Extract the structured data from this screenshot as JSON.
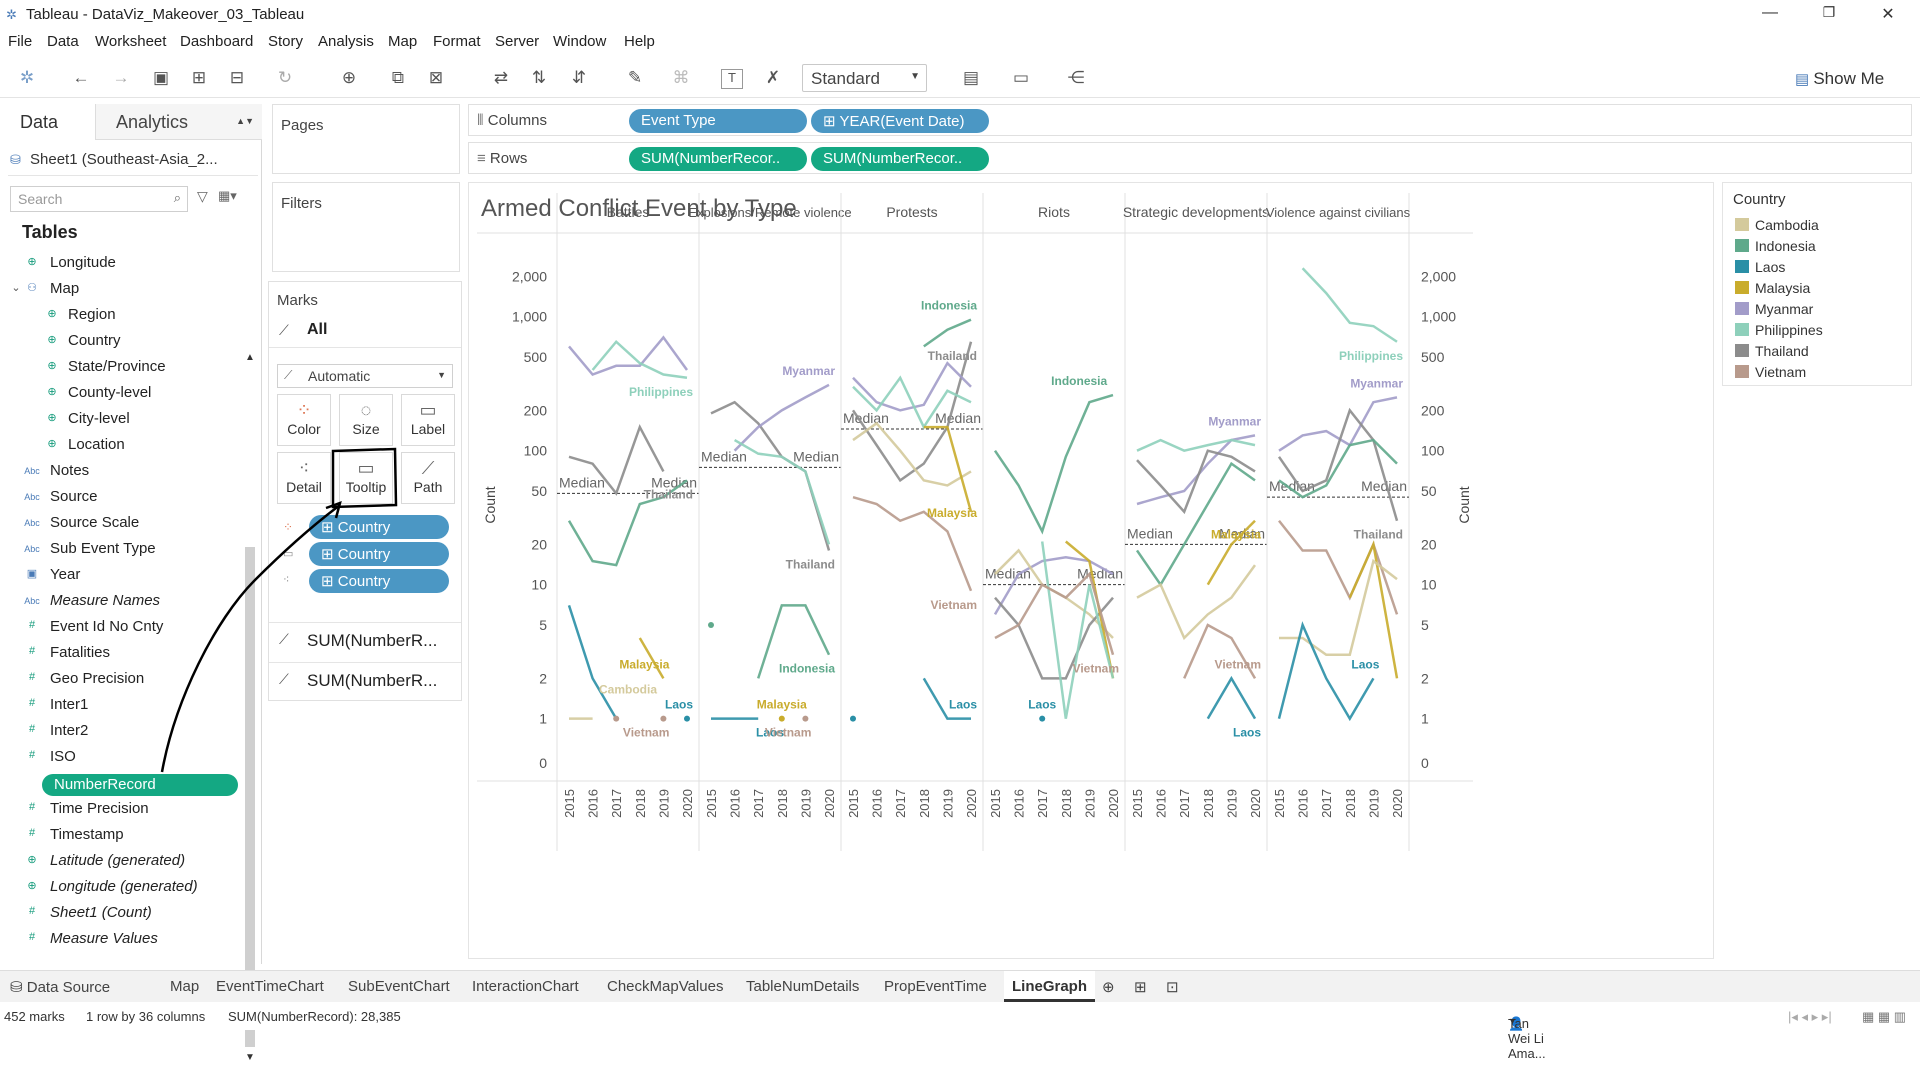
{
  "window": {
    "title": "Tableau - DataViz_Makeover_03_Tableau"
  },
  "menu": [
    "File",
    "Data",
    "Worksheet",
    "Dashboard",
    "Story",
    "Analysis",
    "Map",
    "Format",
    "Server",
    "Window",
    "Help"
  ],
  "toolbar": {
    "fit_value": "Standard",
    "show_me": "Show Me"
  },
  "data_pane": {
    "tabs": [
      "Data",
      "Analytics"
    ],
    "datasource": "Sheet1 (Southeast-Asia_2...",
    "search_placeholder": "Search",
    "tables_label": "Tables",
    "fields": [
      {
        "label": "Longitude",
        "type": "geo"
      },
      {
        "label": "Map",
        "type": "hier"
      },
      {
        "label": "Region",
        "type": "geo",
        "indent": true
      },
      {
        "label": "Country",
        "type": "geo",
        "indent": true
      },
      {
        "label": "State/Province",
        "type": "geo",
        "indent": true
      },
      {
        "label": "County-level",
        "type": "geo",
        "indent": true
      },
      {
        "label": "City-level",
        "type": "geo",
        "indent": true
      },
      {
        "label": "Location",
        "type": "geo",
        "indent": true
      },
      {
        "label": "Notes",
        "type": "abc"
      },
      {
        "label": "Source",
        "type": "abc"
      },
      {
        "label": "Source Scale",
        "type": "abc"
      },
      {
        "label": "Sub Event Type",
        "type": "abc"
      },
      {
        "label": "Year",
        "type": "date"
      },
      {
        "label": "Measure Names",
        "type": "abc",
        "italic": true
      },
      {
        "label": "Event Id No Cnty",
        "type": "num"
      },
      {
        "label": "Fatalities",
        "type": "num"
      },
      {
        "label": "Geo Precision",
        "type": "num"
      },
      {
        "label": "Inter1",
        "type": "num"
      },
      {
        "label": "Inter2",
        "type": "num"
      },
      {
        "label": "ISO",
        "type": "num"
      },
      {
        "label": "NumberRecord",
        "type": "num",
        "selected": true
      },
      {
        "label": "Time Precision",
        "type": "num"
      },
      {
        "label": "Timestamp",
        "type": "num"
      },
      {
        "label": "Latitude (generated)",
        "type": "geo",
        "italic": true
      },
      {
        "label": "Longitude (generated)",
        "type": "geo",
        "italic": true
      },
      {
        "label": "Sheet1 (Count)",
        "type": "num",
        "italic": true
      },
      {
        "label": "Measure Values",
        "type": "num",
        "italic": true
      }
    ]
  },
  "cards": {
    "pages": "Pages",
    "filters": "Filters",
    "marks": "Marks",
    "all": "All",
    "mark_type": "Automatic",
    "buttons": [
      "Color",
      "Size",
      "Label",
      "Detail",
      "Tooltip",
      "Path"
    ],
    "mark_pills": [
      "Country",
      "Country",
      "Country"
    ],
    "measures": [
      "SUM(NumberR...",
      "SUM(NumberR..."
    ]
  },
  "shelves": {
    "columns_label": "Columns",
    "rows_label": "Rows",
    "columns": [
      "Event Type",
      "YEAR(Event Date)"
    ],
    "rows": [
      "SUM(NumberRecor..",
      "SUM(NumberRecor.."
    ]
  },
  "legend": {
    "title": "Country",
    "items": [
      {
        "name": "Cambodia",
        "color": "#d4ca9c"
      },
      {
        "name": "Indonesia",
        "color": "#5fa98b"
      },
      {
        "name": "Laos",
        "color": "#2a8fa6"
      },
      {
        "name": "Malaysia",
        "color": "#c9ac2c"
      },
      {
        "name": "Myanmar",
        "color": "#a29cc9"
      },
      {
        "name": "Philippines",
        "color": "#8ed0bb"
      },
      {
        "name": "Thailand",
        "color": "#8c8c8c"
      },
      {
        "name": "Vietnam",
        "color": "#b89a8c"
      }
    ]
  },
  "chart_data": {
    "type": "line",
    "title": "Armed Conflict Event by Type",
    "ylabel": "Count",
    "yscale": "log",
    "yticks": [
      "0",
      "1",
      "2",
      "5",
      "10",
      "20",
      "50",
      "100",
      "200",
      "500",
      "1,000",
      "2,000"
    ],
    "x": [
      "2015",
      "2016",
      "2017",
      "2018",
      "2019",
      "2020"
    ],
    "panels": [
      {
        "name": "Battles",
        "median": 48,
        "series": [
          {
            "country": "Myanmar",
            "values": [
              600,
              370,
              430,
              430,
              700,
              400
            ]
          },
          {
            "country": "Philippines",
            "values": [
              null,
              400,
              650,
              450,
              370,
              350
            ]
          },
          {
            "country": "Thailand",
            "values": [
              90,
              80,
              48,
              150,
              70,
              null
            ]
          },
          {
            "country": "Indonesia",
            "values": [
              30,
              15,
              14,
              40,
              45,
              60
            ]
          },
          {
            "country": "Laos",
            "values": [
              7,
              2,
              1,
              null,
              null,
              1
            ]
          },
          {
            "country": "Malaysia",
            "values": [
              null,
              null,
              null,
              4,
              2,
              null
            ]
          },
          {
            "country": "Cambodia",
            "values": [
              1,
              1,
              null,
              null,
              null,
              null
            ]
          },
          {
            "country": "Vietnam",
            "values": [
              null,
              null,
              1,
              null,
              1,
              null
            ]
          }
        ]
      },
      {
        "name": "Explosions/Remote violence",
        "median": 75,
        "series": [
          {
            "country": "Thailand",
            "values": [
              190,
              230,
              160,
              90,
              70,
              18
            ]
          },
          {
            "country": "Myanmar",
            "values": [
              null,
              100,
              150,
              200,
              250,
              310
            ]
          },
          {
            "country": "Philippines",
            "values": [
              null,
              120,
              95,
              90,
              70,
              20
            ]
          },
          {
            "country": "Indonesia",
            "values": [
              5,
              null,
              2,
              7,
              7,
              3
            ]
          },
          {
            "country": "Laos",
            "values": [
              1,
              1,
              1,
              null,
              null,
              null
            ]
          },
          {
            "country": "Malaysia",
            "values": [
              null,
              null,
              null,
              1,
              null,
              null
            ]
          },
          {
            "country": "Vietnam",
            "values": [
              null,
              null,
              null,
              null,
              1,
              null
            ]
          }
        ]
      },
      {
        "name": "Protests",
        "median": 145,
        "series": [
          {
            "country": "Indonesia",
            "values": [
              null,
              null,
              null,
              600,
              800,
              950
            ]
          },
          {
            "country": "Thailand",
            "values": [
              200,
              110,
              60,
              80,
              150,
              650
            ]
          },
          {
            "country": "Myanmar",
            "values": [
              350,
              230,
              200,
              220,
              450,
              300
            ]
          },
          {
            "country": "Philippines",
            "values": [
              300,
              200,
              350,
              150,
              280,
              230
            ]
          },
          {
            "country": "Cambodia",
            "values": [
              120,
              160,
              100,
              60,
              55,
              70
            ]
          },
          {
            "country": "Malaysia",
            "values": [
              null,
              null,
              null,
              150,
              150,
              35
            ]
          },
          {
            "country": "Vietnam",
            "values": [
              45,
              40,
              30,
              35,
              25,
              9
            ]
          },
          {
            "country": "Laos",
            "values": [
              1,
              null,
              null,
              2,
              1,
              1
            ]
          }
        ]
      },
      {
        "name": "Riots",
        "median": 10,
        "series": [
          {
            "country": "Indonesia",
            "values": [
              100,
              55,
              25,
              90,
              230,
              260
            ]
          },
          {
            "country": "Myanmar",
            "values": [
              6,
              12,
              15,
              16,
              15,
              12
            ]
          },
          {
            "country": "Cambodia",
            "values": [
              12,
              18,
              10,
              8,
              6,
              4
            ]
          },
          {
            "country": "Thailand",
            "values": [
              8,
              5,
              2,
              2,
              5,
              8
            ]
          },
          {
            "country": "Malaysia",
            "values": [
              null,
              null,
              null,
              21,
              15,
              2
            ]
          },
          {
            "country": "Philippines",
            "values": [
              null,
              null,
              21,
              1,
              10,
              2
            ]
          },
          {
            "country": "Vietnam",
            "values": [
              4,
              5,
              10,
              8,
              12,
              3
            ]
          },
          {
            "country": "Laos",
            "values": [
              null,
              null,
              1,
              null,
              null,
              null
            ]
          }
        ]
      },
      {
        "name": "Strategic developments",
        "median": 20,
        "series": [
          {
            "country": "Myanmar",
            "values": [
              40,
              45,
              50,
              80,
              120,
              130
            ]
          },
          {
            "country": "Philippines",
            "values": [
              100,
              120,
              100,
              110,
              120,
              110
            ]
          },
          {
            "country": "Thailand",
            "values": [
              85,
              55,
              35,
              100,
              90,
              70
            ]
          },
          {
            "country": "Indonesia",
            "values": [
              18,
              10,
              20,
              40,
              80,
              60
            ]
          },
          {
            "country": "Malaysia",
            "values": [
              null,
              null,
              null,
              10,
              20,
              30
            ]
          },
          {
            "country": "Cambodia",
            "values": [
              8,
              10,
              4,
              6,
              8,
              14
            ]
          },
          {
            "country": "Vietnam",
            "values": [
              null,
              null,
              2,
              5,
              4,
              2
            ]
          },
          {
            "country": "Laos",
            "values": [
              null,
              null,
              null,
              1,
              2,
              1
            ]
          }
        ]
      },
      {
        "name": "Violence against civilians",
        "median": 45,
        "series": [
          {
            "country": "Philippines",
            "values": [
              null,
              2300,
              1500,
              900,
              850,
              650
            ]
          },
          {
            "country": "Myanmar",
            "values": [
              100,
              130,
              140,
              110,
              230,
              250
            ]
          },
          {
            "country": "Thailand",
            "values": [
              90,
              50,
              60,
              200,
              120,
              30
            ]
          },
          {
            "country": "Indonesia",
            "values": [
              60,
              45,
              55,
              110,
              120,
              80
            ]
          },
          {
            "country": "Vietnam",
            "values": [
              30,
              18,
              18,
              8,
              20,
              6
            ]
          },
          {
            "country": "Malaysia",
            "values": [
              null,
              null,
              null,
              8,
              20,
              2
            ]
          },
          {
            "country": "Cambodia",
            "values": [
              4,
              4,
              3,
              3,
              15,
              11
            ]
          },
          {
            "country": "Laos",
            "values": [
              1,
              5,
              2,
              1,
              2,
              null
            ]
          }
        ]
      }
    ],
    "annotations": [
      {
        "panel": 0,
        "text": "Philippines",
        "country": "Philippines",
        "x": 5,
        "y": 350,
        "pos": "below"
      },
      {
        "panel": 0,
        "text": "Thailand",
        "country": "Thailand",
        "x": 5,
        "y": 60,
        "pos": "below"
      },
      {
        "panel": 0,
        "text": "Malaysia",
        "country": "Malaysia",
        "x": 4,
        "y": 2,
        "pos": "above"
      },
      {
        "panel": 0,
        "text": "Cambodia",
        "country": "Cambodia",
        "x": 2.5,
        "y": 1.3,
        "pos": "above"
      },
      {
        "panel": 0,
        "text": "Laos",
        "country": "Laos",
        "x": 5,
        "y": 1,
        "pos": "above"
      },
      {
        "panel": 0,
        "text": "Vietnam",
        "country": "Vietnam",
        "x": 4,
        "y": 1,
        "pos": "below"
      },
      {
        "panel": 1,
        "text": "Myanmar",
        "country": "Myanmar",
        "x": 5,
        "y": 310,
        "pos": "above"
      },
      {
        "panel": 1,
        "text": "Thailand",
        "country": "Thailand",
        "x": 5,
        "y": 18,
        "pos": "below"
      },
      {
        "panel": 1,
        "text": "Indonesia",
        "country": "Indonesia",
        "x": 5,
        "y": 3,
        "pos": "below"
      },
      {
        "panel": 1,
        "text": "Malaysia",
        "country": "Malaysia",
        "x": 3,
        "y": 1,
        "pos": "above"
      },
      {
        "panel": 1,
        "text": "Laos",
        "country": "Laos",
        "x": 2.5,
        "y": 1,
        "pos": "below"
      },
      {
        "panel": 1,
        "text": "Vietnam",
        "country": "Vietnam",
        "x": 4,
        "y": 1,
        "pos": "below"
      },
      {
        "panel": 2,
        "text": "Indonesia",
        "country": "Indonesia",
        "x": 5,
        "y": 950,
        "pos": "above"
      },
      {
        "panel": 2,
        "text": "Thailand",
        "country": "Thailand",
        "x": 5,
        "y": 650,
        "pos": "below"
      },
      {
        "panel": 2,
        "text": "Malaysia",
        "country": "Malaysia",
        "x": 5,
        "y": 35,
        "pos": "right"
      },
      {
        "panel": 2,
        "text": "Vietnam",
        "country": "Vietnam",
        "x": 5,
        "y": 9,
        "pos": "below"
      },
      {
        "panel": 2,
        "text": "Laos",
        "country": "Laos",
        "x": 5,
        "y": 1,
        "pos": "above"
      },
      {
        "panel": 3,
        "text": "Indonesia",
        "country": "Indonesia",
        "x": 4.5,
        "y": 260,
        "pos": "above"
      },
      {
        "panel": 3,
        "text": "Vietnam",
        "country": "Vietnam",
        "x": 5,
        "y": 3,
        "pos": "below"
      },
      {
        "panel": 3,
        "text": "Laos",
        "country": "Laos",
        "x": 2,
        "y": 1,
        "pos": "above"
      },
      {
        "panel": 4,
        "text": "Myanmar",
        "country": "Myanmar",
        "x": 5,
        "y": 130,
        "pos": "above"
      },
      {
        "panel": 4,
        "text": "Malaysia",
        "country": "Malaysia",
        "x": 5,
        "y": 30,
        "pos": "below"
      },
      {
        "panel": 4,
        "text": "Vietnam",
        "country": "Vietnam",
        "x": 5,
        "y": 2,
        "pos": "above"
      },
      {
        "panel": 4,
        "text": "Laos",
        "country": "Laos",
        "x": 5,
        "y": 1,
        "pos": "below"
      },
      {
        "panel": 5,
        "text": "Philippines",
        "country": "Philippines",
        "x": 5,
        "y": 650,
        "pos": "below"
      },
      {
        "panel": 5,
        "text": "Myanmar",
        "country": "Myanmar",
        "x": 5,
        "y": 250,
        "pos": "above"
      },
      {
        "panel": 5,
        "text": "Thailand",
        "country": "Thailand",
        "x": 5,
        "y": 30,
        "pos": "below"
      },
      {
        "panel": 5,
        "text": "Laos",
        "country": "Laos",
        "x": 4,
        "y": 2,
        "pos": "above"
      }
    ],
    "median_label": "Median"
  },
  "sheet_tabs": [
    "Data Source",
    "Map",
    "EventTimeChart",
    "SubEventChart",
    "InteractionChart",
    "CheckMapValues",
    "TableNumDetails",
    "PropEventTime",
    "LineGraph"
  ],
  "active_tab": "LineGraph",
  "status": {
    "marks": "452 marks",
    "rows": "1 row by 36 columns",
    "sum": "SUM(NumberRecord): 28,385",
    "user": "Tan Wei Li Ama..."
  }
}
